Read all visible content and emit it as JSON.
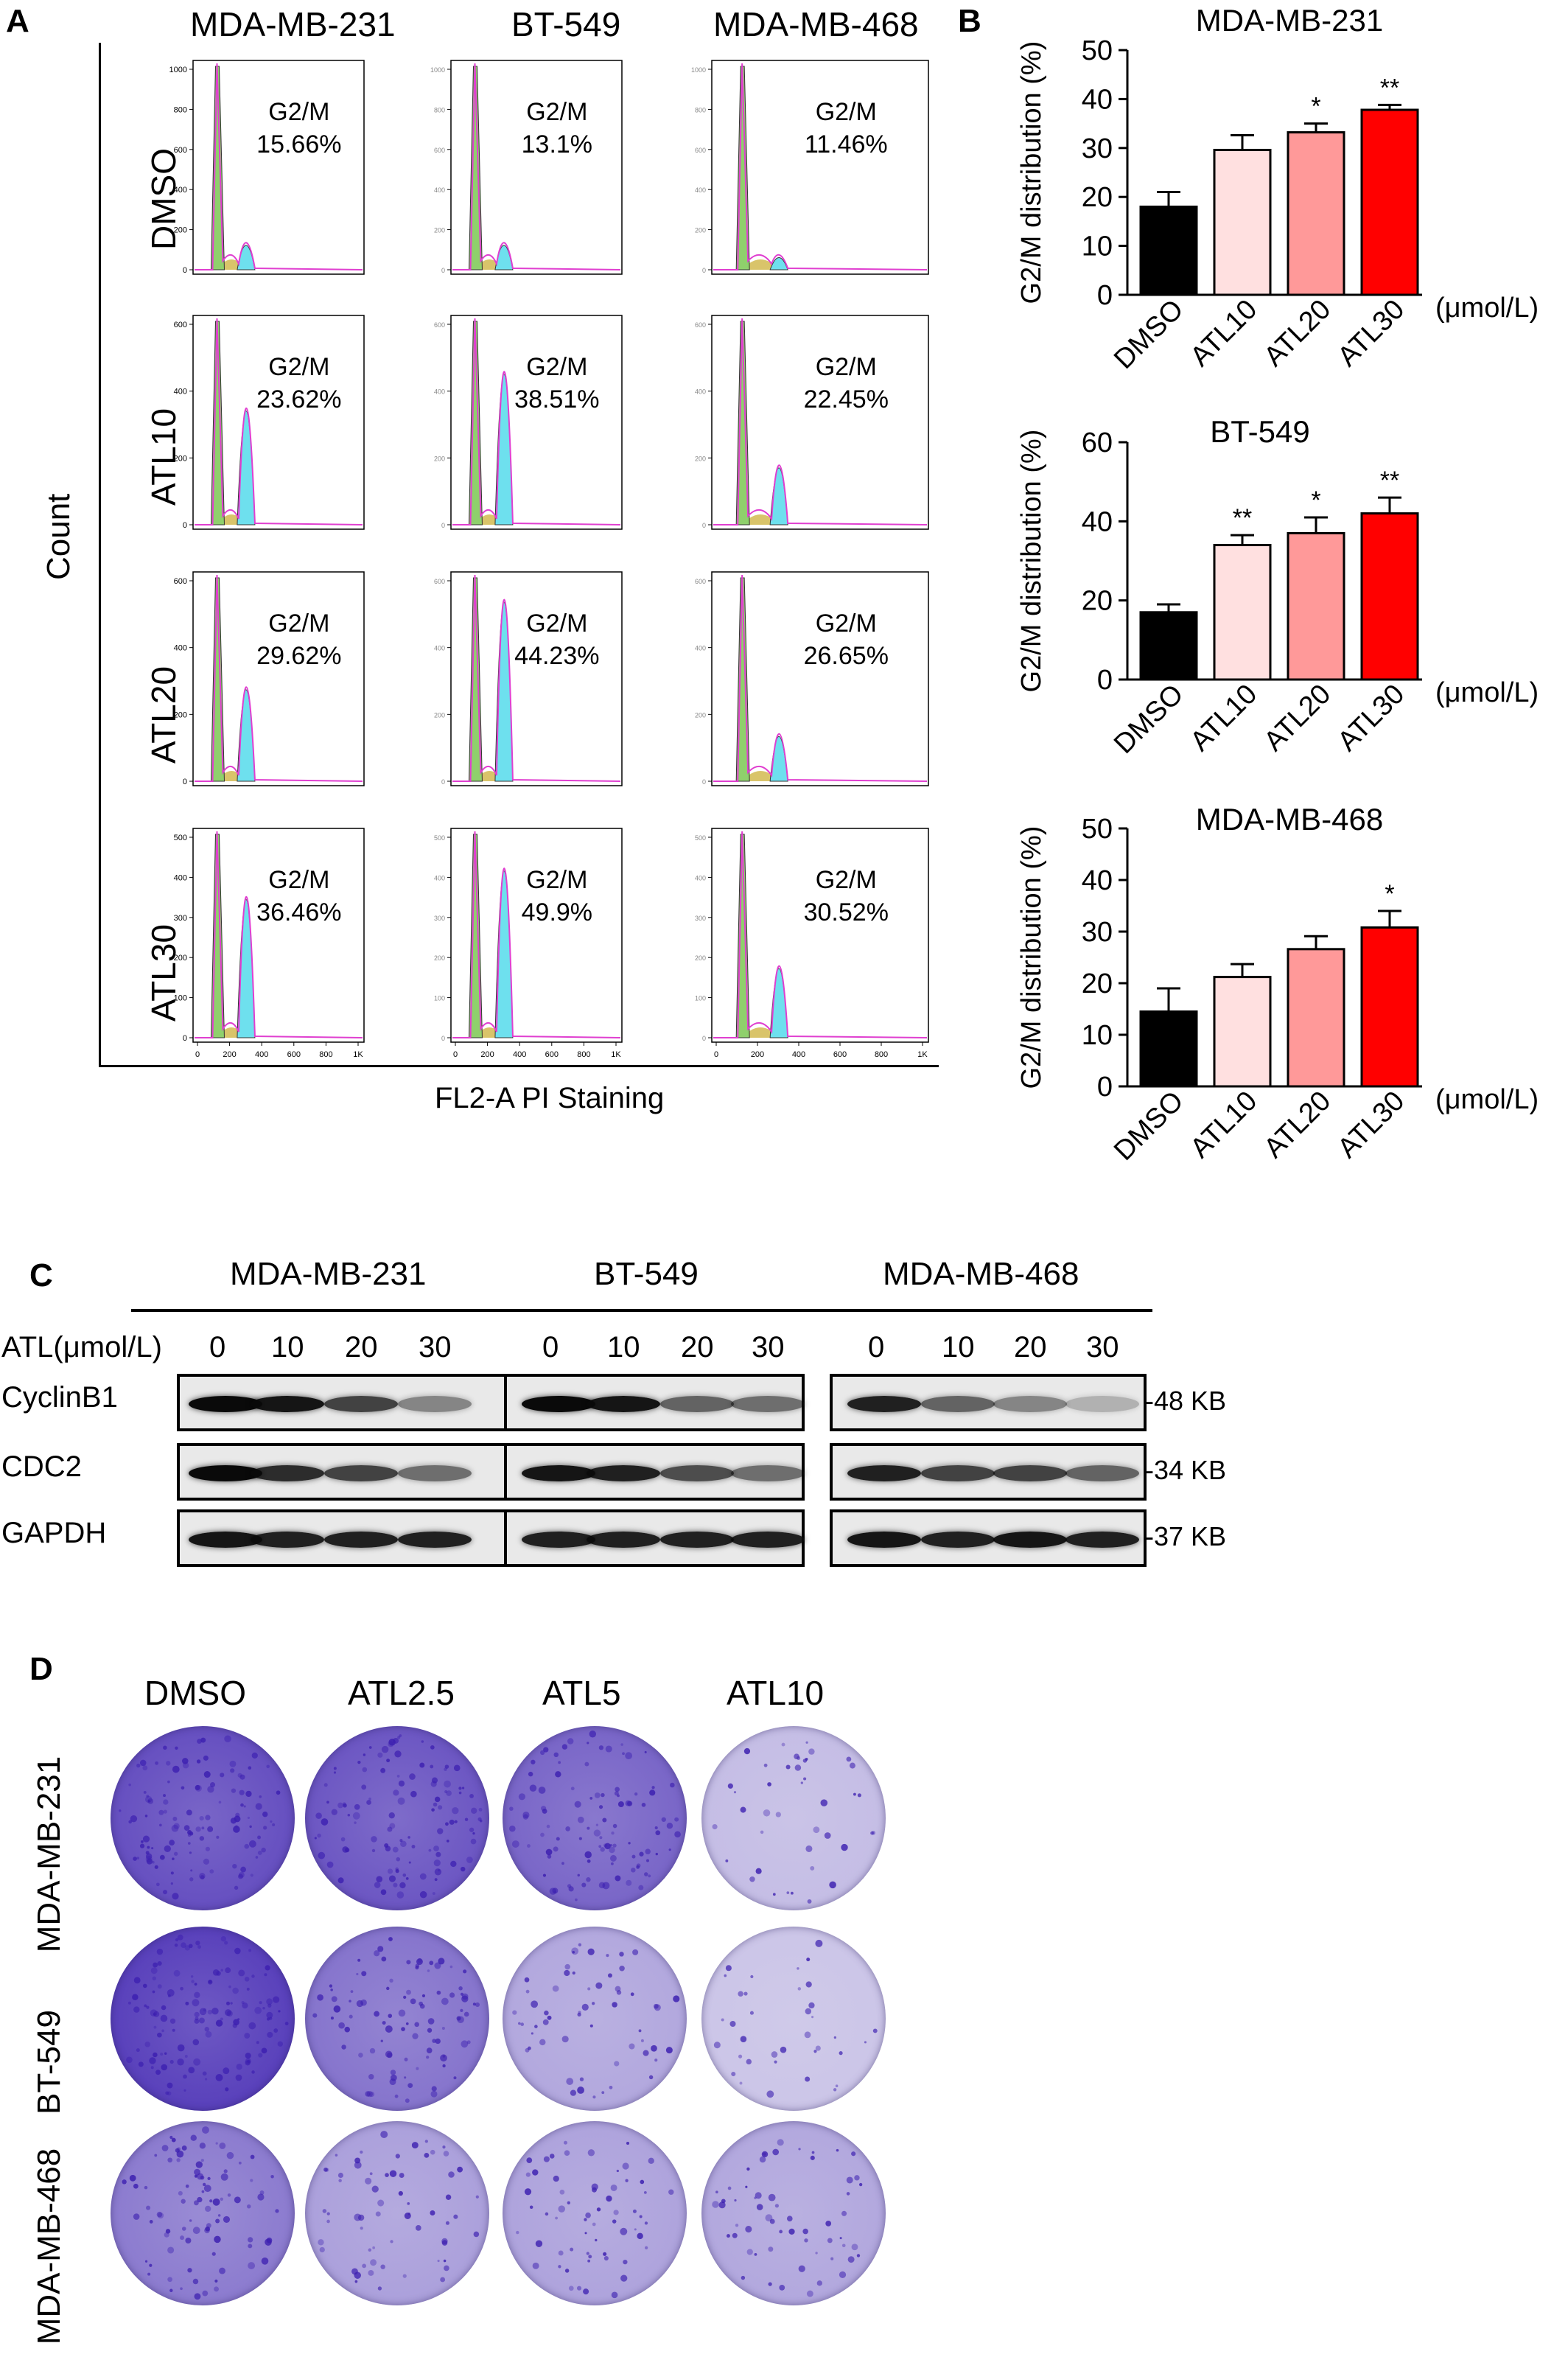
{
  "panel_labels": {
    "a": "A",
    "b": "B",
    "c": "C",
    "d": "D"
  },
  "panel_a": {
    "cell_lines": [
      "MDA-MB-231",
      "BT-549",
      "MDA-MB-468"
    ],
    "treatments": [
      "DMSO",
      "ATL10",
      "ATL20",
      "ATL30"
    ],
    "y_axis_label": "Count",
    "x_axis_label": "FL2-A PI Staining",
    "phase_label": "G2/M",
    "percentages": [
      [
        "15.66%",
        "13.1%",
        "11.46%"
      ],
      [
        "23.62%",
        "38.51%",
        "22.45%"
      ],
      [
        "29.62%",
        "44.23%",
        "26.65%"
      ],
      [
        "36.46%",
        "49.9%",
        "30.52%"
      ]
    ],
    "x_ticks": [
      "0",
      "200",
      "400",
      "600",
      "800",
      "1K"
    ],
    "y_ticks": [
      [
        "0",
        "200",
        "400",
        "600",
        "800",
        "1000"
      ],
      [
        "0",
        "200",
        "400",
        "600"
      ],
      [
        "0",
        "200",
        "400",
        "600"
      ],
      [
        "0",
        "100",
        "200",
        "300",
        "400",
        "500"
      ]
    ],
    "colors": {
      "g1": "#8fd06c",
      "s": "#d9c46a",
      "g2m": "#6ee0ee",
      "fit": "#e03fd0",
      "outline": "#000000"
    }
  },
  "chart_data": [
    {
      "type": "bar",
      "title": "MDA-MB-231",
      "categories": [
        "DMSO",
        "ATL10",
        "ATL20",
        "ATL30"
      ],
      "values": [
        18,
        29.6,
        33.2,
        37.8
      ],
      "errors": [
        3,
        3,
        1.8,
        1
      ],
      "significance": [
        "",
        "",
        "*",
        "**"
      ],
      "ylabel": "G2/M distribution (%)",
      "unit_label": "(μmol/L)",
      "ylim": [
        0,
        50
      ],
      "yticks": [
        0,
        10,
        20,
        30,
        40,
        50
      ],
      "colors": [
        "#000000",
        "#ffe0e0",
        "#ff9999",
        "#ff0000"
      ]
    },
    {
      "type": "bar",
      "title": "BT-549",
      "categories": [
        "DMSO",
        "ATL10",
        "ATL20",
        "ATL30"
      ],
      "values": [
        17,
        34,
        37,
        42
      ],
      "errors": [
        2,
        2.5,
        4,
        4
      ],
      "significance": [
        "",
        "**",
        "*",
        "**"
      ],
      "ylabel": "G2/M distribution (%)",
      "unit_label": "(μmol/L)",
      "ylim": [
        0,
        60
      ],
      "yticks": [
        0,
        20,
        40,
        60
      ],
      "colors": [
        "#000000",
        "#ffe0e0",
        "#ff9999",
        "#ff0000"
      ]
    },
    {
      "type": "bar",
      "title": "MDA-MB-468",
      "categories": [
        "DMSO",
        "ATL10",
        "ATL20",
        "ATL30"
      ],
      "values": [
        14.5,
        21.2,
        26.6,
        30.8
      ],
      "errors": [
        4.5,
        2.5,
        2.5,
        3.2
      ],
      "significance": [
        "",
        "",
        "",
        "*"
      ],
      "ylabel": "G2/M distribution (%)",
      "unit_label": "(μmol/L)",
      "ylim": [
        0,
        50
      ],
      "yticks": [
        0,
        10,
        20,
        30,
        40,
        50
      ],
      "colors": [
        "#000000",
        "#ffe0e0",
        "#ff9999",
        "#ff0000"
      ]
    }
  ],
  "panel_c": {
    "cell_lines": [
      "MDA-MB-231",
      "BT-549",
      "MDA-MB-468"
    ],
    "dose_label": "ATL(μmol/L)",
    "doses": [
      "0",
      "10",
      "20",
      "30"
    ],
    "proteins": [
      {
        "name": "CyclinB1",
        "kd": "-48 KB",
        "intensity": [
          [
            1,
            0.95,
            0.75,
            0.45
          ],
          [
            1,
            0.95,
            0.6,
            0.55
          ],
          [
            0.9,
            0.6,
            0.45,
            0.25
          ]
        ]
      },
      {
        "name": "CDC2",
        "kd": "-34 KB",
        "intensity": [
          [
            1,
            0.85,
            0.75,
            0.55
          ],
          [
            0.95,
            0.9,
            0.7,
            0.55
          ],
          [
            0.9,
            0.75,
            0.75,
            0.6
          ]
        ]
      },
      {
        "name": "GAPDH",
        "kd": "-37 KB",
        "intensity": [
          [
            0.95,
            0.9,
            0.9,
            0.9
          ],
          [
            0.9,
            0.9,
            0.9,
            0.9
          ],
          [
            0.95,
            0.9,
            0.95,
            0.9
          ]
        ]
      }
    ]
  },
  "panel_d": {
    "treatments": [
      "DMSO",
      "ATL2.5",
      "ATL5",
      "ATL10"
    ],
    "cell_lines": [
      "MDA-MB-231",
      "BT-549",
      "MDA-MB-468"
    ],
    "colony_density": [
      [
        0.85,
        0.8,
        0.7,
        0.1
      ],
      [
        0.95,
        0.6,
        0.25,
        0.05
      ],
      [
        0.55,
        0.3,
        0.28,
        0.25
      ]
    ],
    "stain_color": "#3c1fb0"
  }
}
